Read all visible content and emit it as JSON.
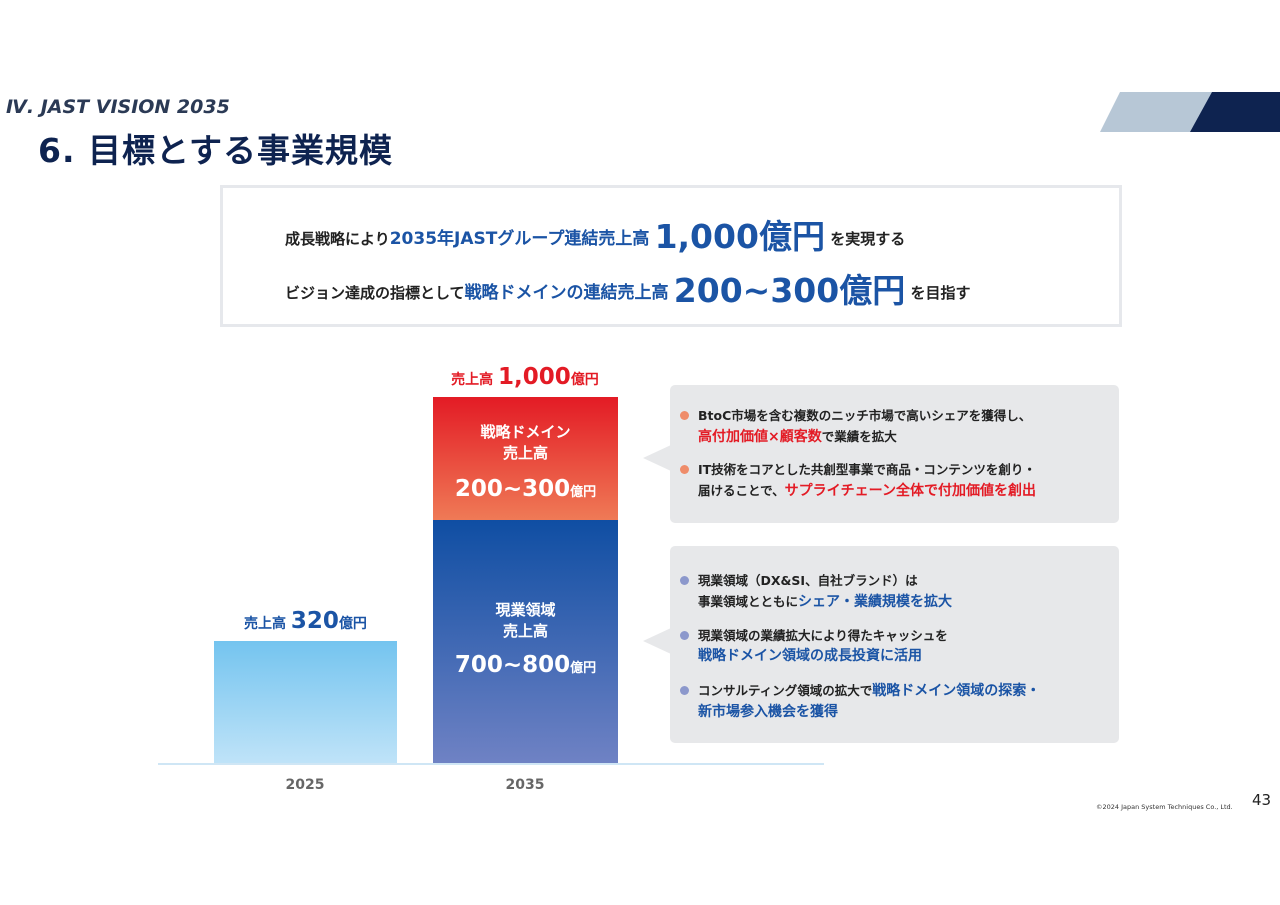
{
  "header": {
    "section": "Ⅳ.  JAST VISION 2035",
    "title": "6. 目標とする事業規模"
  },
  "summary": {
    "line1": {
      "pre": "成長戦略により",
      "hl": "2035年JASTグループ連結売上高",
      "big": "1,000億円",
      "post": "を実現する"
    },
    "line2": {
      "pre": "ビジョン達成の指標として",
      "hl": "戦略ドメインの連結売上高",
      "big": "200~300億円",
      "post": "を目指す"
    }
  },
  "chart_data": {
    "type": "bar",
    "categories": [
      "2025",
      "2035"
    ],
    "series": [
      {
        "name": "現業領域 売上高",
        "values": [
          320,
          750
        ],
        "label_2035": "700~800"
      },
      {
        "name": "戦略ドメイン 売上高",
        "values": [
          0,
          250
        ],
        "label_2035": "200~300"
      }
    ],
    "unit": "億円",
    "totals": [
      320,
      1000
    ]
  },
  "chart_labels": {
    "total_2025": {
      "prefix": "売上高",
      "num": "320",
      "unit": "億円"
    },
    "total_2035": {
      "prefix": "売上高",
      "num": "1,000",
      "unit": "億円"
    },
    "strategic": {
      "title1": "戦略ドメイン",
      "title2": "売上高",
      "num": "200~300",
      "unit": "億円"
    },
    "current": {
      "title1": "現業領域",
      "title2": "売上高",
      "num": "700~800",
      "unit": "億円"
    },
    "tick_2025": "2025",
    "tick_2035": "2035"
  },
  "callout_strategic": [
    {
      "a": "BtoC市場を含む複数のニッチ市場で高いシェアを獲得し、",
      "b_em": "高付加価値×顧客数",
      "b_post": "で業績を拡大"
    },
    {
      "a": "IT技術をコアとした共創型事業で商品・コンテンツを創り・",
      "b_pre": "届けることで、",
      "b_em": "サプライチェーン全体で付加価値を創出"
    }
  ],
  "callout_current": [
    {
      "a": "現業領域（DX&SI、自社ブランド）は",
      "b_pre": "事業領域とともに",
      "b_em": "シェア・業績規模を拡大"
    },
    {
      "a": "現業領域の業績拡大により得たキャッシュを",
      "b_em": "戦略ドメイン領域の成長投資に活用"
    },
    {
      "a_pre": "コンサルティング領域の拡大で",
      "a_em": "戦略ドメイン領域の探索・",
      "b_em": "新市場参入機会を獲得"
    }
  ],
  "colors": {
    "navy": "#0e2350",
    "blue": "#1b54a5",
    "red": "#e31b25",
    "dot_orange": "#ef8c6a",
    "dot_blue": "#8c98cc"
  },
  "footer": {
    "copyright": "©2024 Japan System Techniques Co., Ltd.",
    "page": "43"
  }
}
